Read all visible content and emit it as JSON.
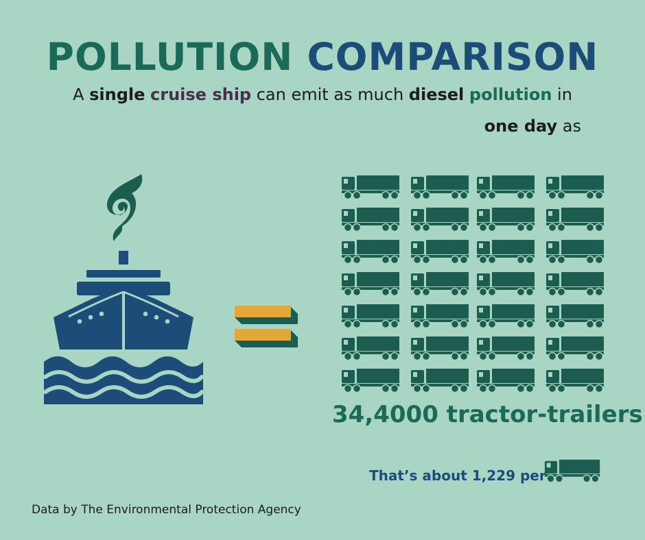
{
  "title": {
    "word1": "POLLUTION",
    "word2": "COMPARISON"
  },
  "subtitle": {
    "p1": "A ",
    "single": "single",
    "cruise_ship": "cruise ship",
    "p2": " can emit as much ",
    "diesel": "diesel",
    "pollution": "pollution",
    "p3": " in",
    "one_day": "one day",
    "p4": " as"
  },
  "truck_grid": {
    "rows": 7,
    "columns": 4,
    "icon": "tractor-trailer-icon"
  },
  "trailer_count": "34,4000 tractor-trailers",
  "per_text": "That’s about 1,229 per",
  "source": "Data by The Environmental Protection Agency",
  "colors": {
    "background": "#a8d5c4",
    "dark_green": "#1a6a57",
    "navy": "#1c4d78",
    "truck": "#1b5d4e",
    "equals_gold": "#e3a838"
  }
}
